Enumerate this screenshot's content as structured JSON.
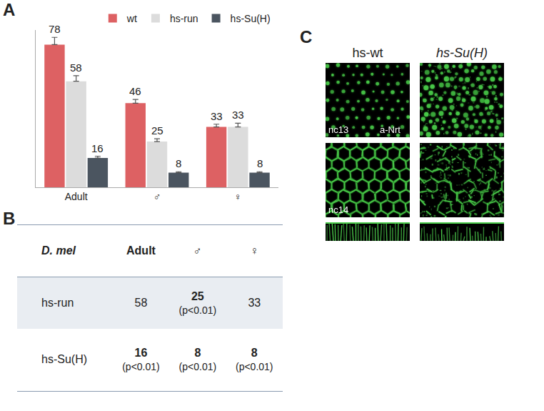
{
  "panel_labels": [
    "A",
    "B",
    "C"
  ],
  "chart_data": {
    "type": "bar",
    "categories": [
      "Adult",
      "♂",
      "♀"
    ],
    "series": [
      {
        "name": "wt",
        "color": "#dd6163",
        "values": [
          78,
          46,
          33
        ],
        "errors": [
          4,
          2,
          1.5
        ]
      },
      {
        "name": "hs-run",
        "color": "#dcdcdc",
        "values": [
          58,
          25,
          33
        ],
        "errors": [
          3,
          1.5,
          2
        ]
      },
      {
        "name": "hs-Su(H)",
        "color": "#4b5560",
        "values": [
          16,
          8,
          8
        ],
        "errors": [
          1,
          0.5,
          0.5
        ]
      }
    ],
    "ylim": [
      0,
      86
    ],
    "yticks": [],
    "tick_labels": "x",
    "data_labels": true,
    "legend": "top",
    "grid": false
  },
  "table": {
    "header": [
      "D. mel",
      "Adult",
      "♂",
      "♀"
    ],
    "rows": [
      {
        "label": "hs-run",
        "cells": [
          {
            "value": "58"
          },
          {
            "value": "25",
            "note": "(p<0.01)"
          },
          {
            "value": "33"
          }
        ]
      },
      {
        "label": "hs-Su(H)",
        "cells": [
          {
            "value": "16",
            "note": "(p<0.01)"
          },
          {
            "value": "8",
            "note": "(p<0.01)"
          },
          {
            "value": "8",
            "note": "(p<0.01)"
          }
        ]
      }
    ]
  },
  "images": {
    "columns": [
      "hs-wt",
      "hs-Su(H)"
    ],
    "rows": [
      {
        "stage": "nc13",
        "stain": "a-Nrt"
      },
      {
        "stage": "nc14"
      }
    ]
  }
}
